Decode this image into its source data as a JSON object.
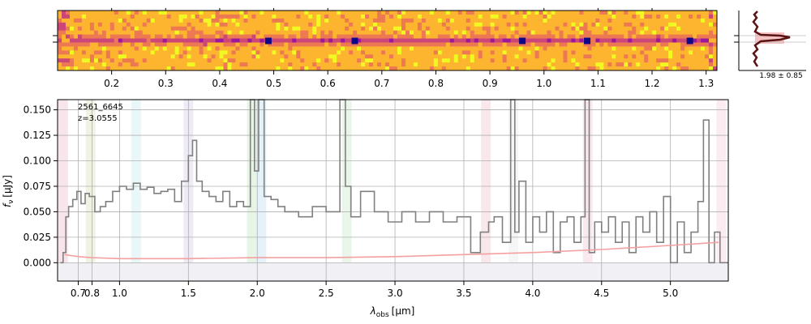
{
  "chart_data": [
    {
      "type": "heatmap",
      "panel": "2D spectrum",
      "colormap": "plasma",
      "xlabel": "",
      "xlim": [
        0.1,
        1.32
      ],
      "x_ticks": [
        0.2,
        0.3,
        0.4,
        0.5,
        0.6,
        0.7,
        0.8,
        0.9,
        1.0,
        1.1,
        1.2,
        1.3
      ],
      "x_tick_labels": [
        "0.2",
        "0.3",
        "0.4",
        "0.5",
        "0.6",
        "0.7",
        "0.8",
        "0.9",
        "1.0",
        "1.1",
        "1.2",
        "1.3"
      ],
      "emission_knots_wavelength": [
        0.49,
        0.65,
        1.08,
        0.96,
        1.27
      ]
    },
    {
      "type": "line",
      "panel": "spatial profile",
      "annotation": "1.98 ± 0.85"
    },
    {
      "type": "line",
      "panel": "1D spectrum",
      "annotation_lines": [
        "2561_6645",
        "z=3.0555"
      ],
      "xlabel_main": "λ",
      "xlabel_sub": "obs",
      "xlabel_unit": "[μm]",
      "ylabel_main": "f",
      "ylabel_sub": "ν",
      "ylabel_unit": "[μJy]",
      "xlim": [
        0.55,
        5.42
      ],
      "ylim": [
        -0.018,
        0.16
      ],
      "x_ticks": [
        0.7,
        0.8,
        1.0,
        1.5,
        2.0,
        2.5,
        3.0,
        3.5,
        4.0,
        4.5,
        5.0
      ],
      "x_tick_labels": [
        "0.7",
        "0.8",
        "1.0",
        "1.5",
        "2.0",
        "2.5",
        "3.0",
        "3.5",
        "4.0",
        "4.5",
        "5.0"
      ],
      "y_ticks": [
        0.0,
        0.025,
        0.05,
        0.075,
        0.1,
        0.125,
        0.15
      ],
      "y_tick_labels": [
        "0.000",
        "0.025",
        "0.050",
        "0.075",
        "0.100",
        "0.125",
        "0.150"
      ],
      "grid": true,
      "series": [
        {
          "role": "flux",
          "color": "#808080",
          "x": [
            0.57,
            0.59,
            0.61,
            0.63,
            0.66,
            0.69,
            0.72,
            0.75,
            0.78,
            0.82,
            0.86,
            0.9,
            0.95,
            1.0,
            1.05,
            1.1,
            1.15,
            1.2,
            1.25,
            1.3,
            1.35,
            1.4,
            1.45,
            1.5,
            1.53,
            1.56,
            1.6,
            1.65,
            1.7,
            1.75,
            1.8,
            1.85,
            1.9,
            1.95,
            1.98,
            2.01,
            2.05,
            2.1,
            2.15,
            2.2,
            2.3,
            2.4,
            2.5,
            2.6,
            2.64,
            2.68,
            2.75,
            2.85,
            2.95,
            3.05,
            3.15,
            3.25,
            3.35,
            3.45,
            3.55,
            3.62,
            3.68,
            3.72,
            3.78,
            3.84,
            3.87,
            3.9,
            3.95,
            4.0,
            4.05,
            4.1,
            4.15,
            4.2,
            4.25,
            4.3,
            4.35,
            4.38,
            4.41,
            4.45,
            4.5,
            4.55,
            4.6,
            4.65,
            4.7,
            4.75,
            4.8,
            4.85,
            4.9,
            4.95,
            5.0,
            5.05,
            5.1,
            5.15,
            5.2,
            5.24,
            5.28,
            5.32,
            5.36,
            5.4
          ],
          "y": [
            0.0,
            0.01,
            0.045,
            0.055,
            0.062,
            0.07,
            0.058,
            0.068,
            0.065,
            0.05,
            0.055,
            0.06,
            0.07,
            0.075,
            0.072,
            0.078,
            0.072,
            0.074,
            0.068,
            0.07,
            0.072,
            0.06,
            0.08,
            0.105,
            0.12,
            0.08,
            0.07,
            0.065,
            0.06,
            0.07,
            0.055,
            0.06,
            0.055,
            0.16,
            0.09,
            0.16,
            0.065,
            0.062,
            0.055,
            0.05,
            0.045,
            0.055,
            0.05,
            0.16,
            0.075,
            0.045,
            0.07,
            0.05,
            0.04,
            0.05,
            0.04,
            0.05,
            0.04,
            0.045,
            0.01,
            0.03,
            0.04,
            0.045,
            0.02,
            0.16,
            0.03,
            0.08,
            0.02,
            0.045,
            0.03,
            0.05,
            0.01,
            0.04,
            0.045,
            0.02,
            0.045,
            0.16,
            0.01,
            0.04,
            0.03,
            0.045,
            0.02,
            0.04,
            0.01,
            0.045,
            0.03,
            0.05,
            0.02,
            0.065,
            0.0,
            0.04,
            0.01,
            0.03,
            0.06,
            0.14,
            0.0,
            0.03,
            0.0,
            0.0
          ]
        },
        {
          "role": "uncertainty",
          "color": "#f4a0a0",
          "x": [
            0.6,
            0.7,
            0.8,
            1.0,
            1.5,
            2.0,
            2.5,
            3.0,
            3.5,
            4.0,
            4.5,
            5.0,
            5.35
          ],
          "y": [
            0.008,
            0.006,
            0.005,
            0.004,
            0.004,
            0.005,
            0.005,
            0.006,
            0.008,
            0.01,
            0.013,
            0.017,
            0.02
          ]
        }
      ],
      "shaded_bands": [
        {
          "center": 0.59,
          "color": "#f2d0dc"
        },
        {
          "center": 0.79,
          "color": "#e4e9cc"
        },
        {
          "center": 1.12,
          "color": "#d8f0f4"
        },
        {
          "center": 1.5,
          "color": "#e0daf0"
        },
        {
          "center": 1.96,
          "color": "#d4ecd4"
        },
        {
          "center": 2.03,
          "color": "#d0e8f4"
        },
        {
          "center": 2.65,
          "color": "#d8eed8"
        },
        {
          "center": 3.66,
          "color": "#f2d6da"
        },
        {
          "center": 3.86,
          "color": "#eeeeee"
        },
        {
          "center": 4.4,
          "color": "#f6d6e2"
        },
        {
          "center": 5.37,
          "color": "#f6dde4"
        }
      ]
    }
  ]
}
